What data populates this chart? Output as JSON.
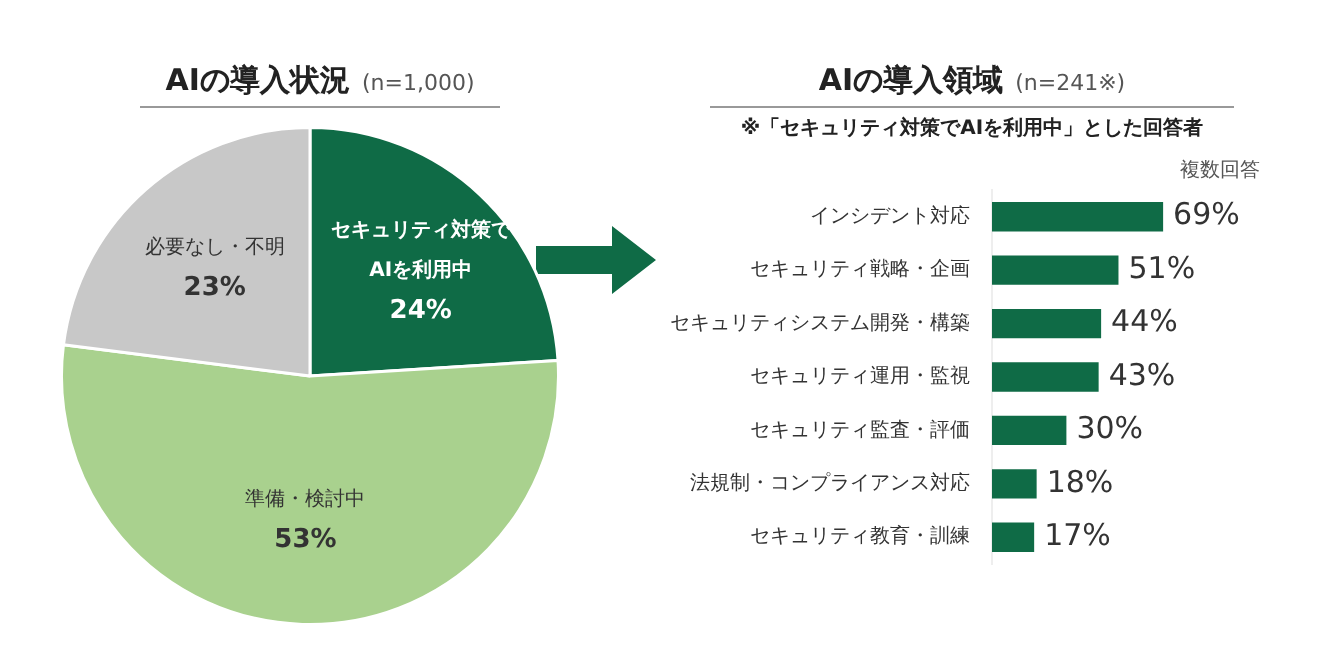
{
  "chart_data": [
    {
      "type": "pie",
      "title": "AIの導入状況",
      "subtitle": "(n=1,000)",
      "categories": [
        "セキュリティ対策で\nAIを利用中",
        "準備・検討中",
        "必要なし・不明"
      ],
      "values": [
        24,
        53,
        23
      ],
      "colors": [
        "#0f6b46",
        "#a9d18e",
        "#c8c8c8"
      ],
      "value_labels": [
        "24%",
        "53%",
        "23%"
      ]
    },
    {
      "type": "bar",
      "orientation": "horizontal",
      "title": "AIの導入領域",
      "subtitle": "(n=241※)",
      "annotations": [
        "※「セキュリティ対策でAIを利用中」とした回答者",
        "複数回答"
      ],
      "categories": [
        "インシデント対応",
        "セキュリティ戦略・企画",
        "セキュリティシステム開発・構築",
        "セキュリティ運用・監視",
        "セキュリティ監査・評価",
        "法規制・コンプライアンス対応",
        "セキュリティ教育・訓練"
      ],
      "values": [
        69,
        51,
        44,
        43,
        30,
        18,
        17
      ],
      "color": "#0f6b46",
      "value_labels": [
        "69%",
        "51%",
        "44%",
        "43%",
        "30%",
        "18%",
        "17%"
      ]
    }
  ]
}
